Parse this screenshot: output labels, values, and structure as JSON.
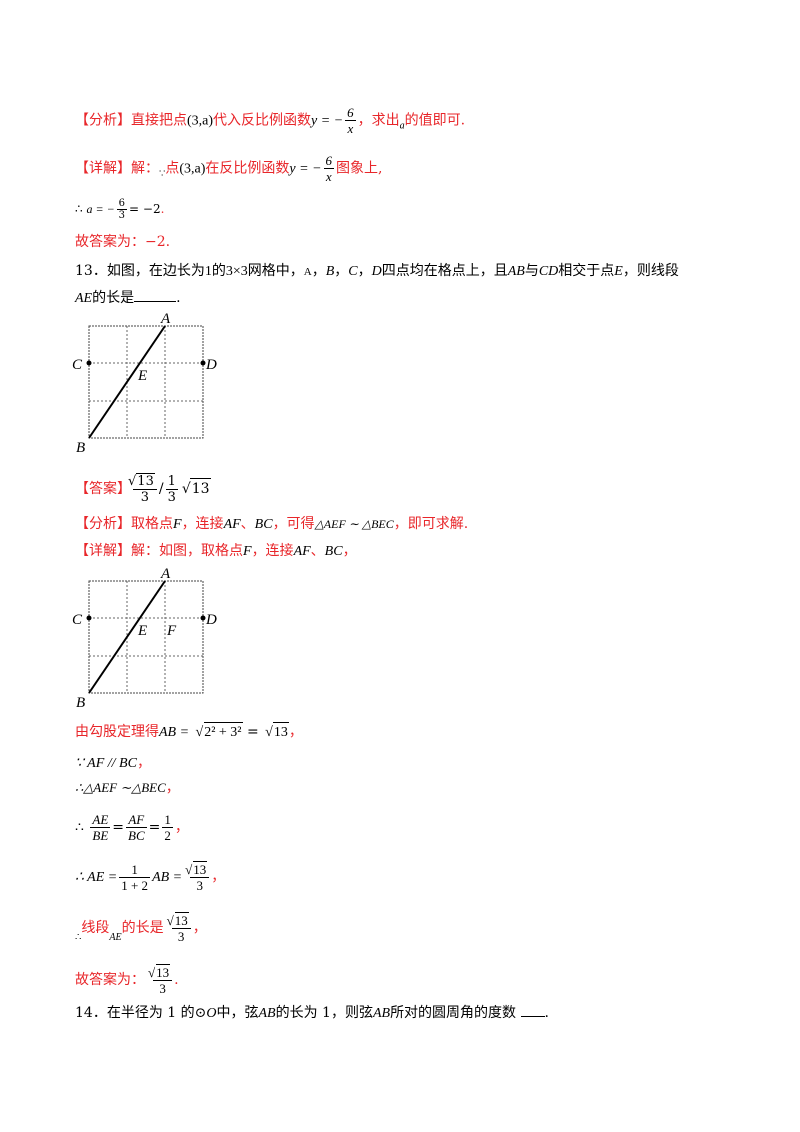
{
  "analysis_12": {
    "tag": "【分析】",
    "text1": "直接把点",
    "point": "(3,a)",
    "text2": "代入反比例函数",
    "func_left": "y = −",
    "func_num": "6",
    "func_den": "x",
    "text3": "，求出",
    "var_a": "a",
    "text4": "的值即可."
  },
  "detail_12": {
    "tag": "【详解】",
    "text1": "解：",
    "because": "∵",
    "text2": "点",
    "point": "(3,a)",
    "text3": "在反比例函数",
    "func_left": "y = −",
    "func_num": "6",
    "func_den": "x",
    "text4": "图象上,"
  },
  "calc_12": {
    "therefore": "∴",
    "left": "a = −",
    "num": "6",
    "den": "3",
    "right": "= −2",
    "end": "."
  },
  "answer_12": {
    "text": "故答案为：−2",
    "end": "."
  },
  "q13": {
    "number": "13．如图，在边长为",
    "one": "1",
    "text1": "的",
    "grid": "3×3",
    "text2": "网格中，",
    "A": "A",
    "B": "B",
    "C": "C",
    "D": "D",
    "sep": "，",
    "text3": "四点均在格点上，且",
    "AB": "AB",
    "text4": "与",
    "CD": "CD",
    "text5": "相交于点",
    "E": "E",
    "text6": "，则线段",
    "AE": "AE",
    "text7": "的长是",
    "end": "."
  },
  "figure1": {
    "labels": [
      "A",
      "B",
      "C",
      "D",
      "E"
    ]
  },
  "answer_13": {
    "tag": "【答案】",
    "sqrt": "13",
    "den": "3",
    "slash": "/",
    "one": "1",
    "three": "3",
    "sqrt2": "13"
  },
  "analysis_13": {
    "tag": "【分析】",
    "text1": "取格点",
    "F": "F",
    "text2": "，连接",
    "AF": "AF",
    "text3": "、",
    "BC": "BC",
    "text4": "，可得",
    "sim": "△AEF ∼ △BEC",
    "text5": "，即可求解."
  },
  "detail_13": {
    "tag": "【详解】",
    "text1": "解：如图，取格点",
    "F": "F",
    "text2": "，连接",
    "AF": "AF",
    "text3": "、",
    "BC": "BC",
    "text4": "，"
  },
  "figure2": {
    "labels": [
      "A",
      "B",
      "C",
      "D",
      "E",
      "F"
    ]
  },
  "steps_13": {
    "pythag_text": "由勾股定理得",
    "pythag_left": "AB =",
    "pythag_inner": "2² + 3²",
    "pythag_eq": "=",
    "pythag_res": "13",
    "comma": "，",
    "parallel": "∵ AF // BC",
    "similar": "∴△AEF ∼△BEC",
    "ratio_therefore": "∴",
    "ratio_n1": "AE",
    "ratio_d1": "BE",
    "ratio_n2": "AF",
    "ratio_d2": "BC",
    "ratio_n3": "1",
    "ratio_d3": "2",
    "ae_therefore": "∴ AE =",
    "ae_n": "1",
    "ae_d": "1 + 2",
    "ae_mid": "AB =",
    "ae_rn": "13",
    "ae_rd": "3",
    "seg_therefore": "∴",
    "seg_text1": "线段",
    "seg_AE": "AE",
    "seg_text2": "的长是",
    "seg_rn": "13",
    "seg_rd": "3",
    "final_text": "故答案为：",
    "final_rn": "13",
    "final_rd": "3",
    "final_end": "."
  },
  "q14": {
    "text1": "14．在半径为 1 的⊙",
    "O": "O",
    "text2": "中，弦",
    "AB": "AB",
    "text3": "的长为 1，则弦",
    "AB2": "AB",
    "text4": "所对的圆周角的度数",
    "end": "."
  }
}
